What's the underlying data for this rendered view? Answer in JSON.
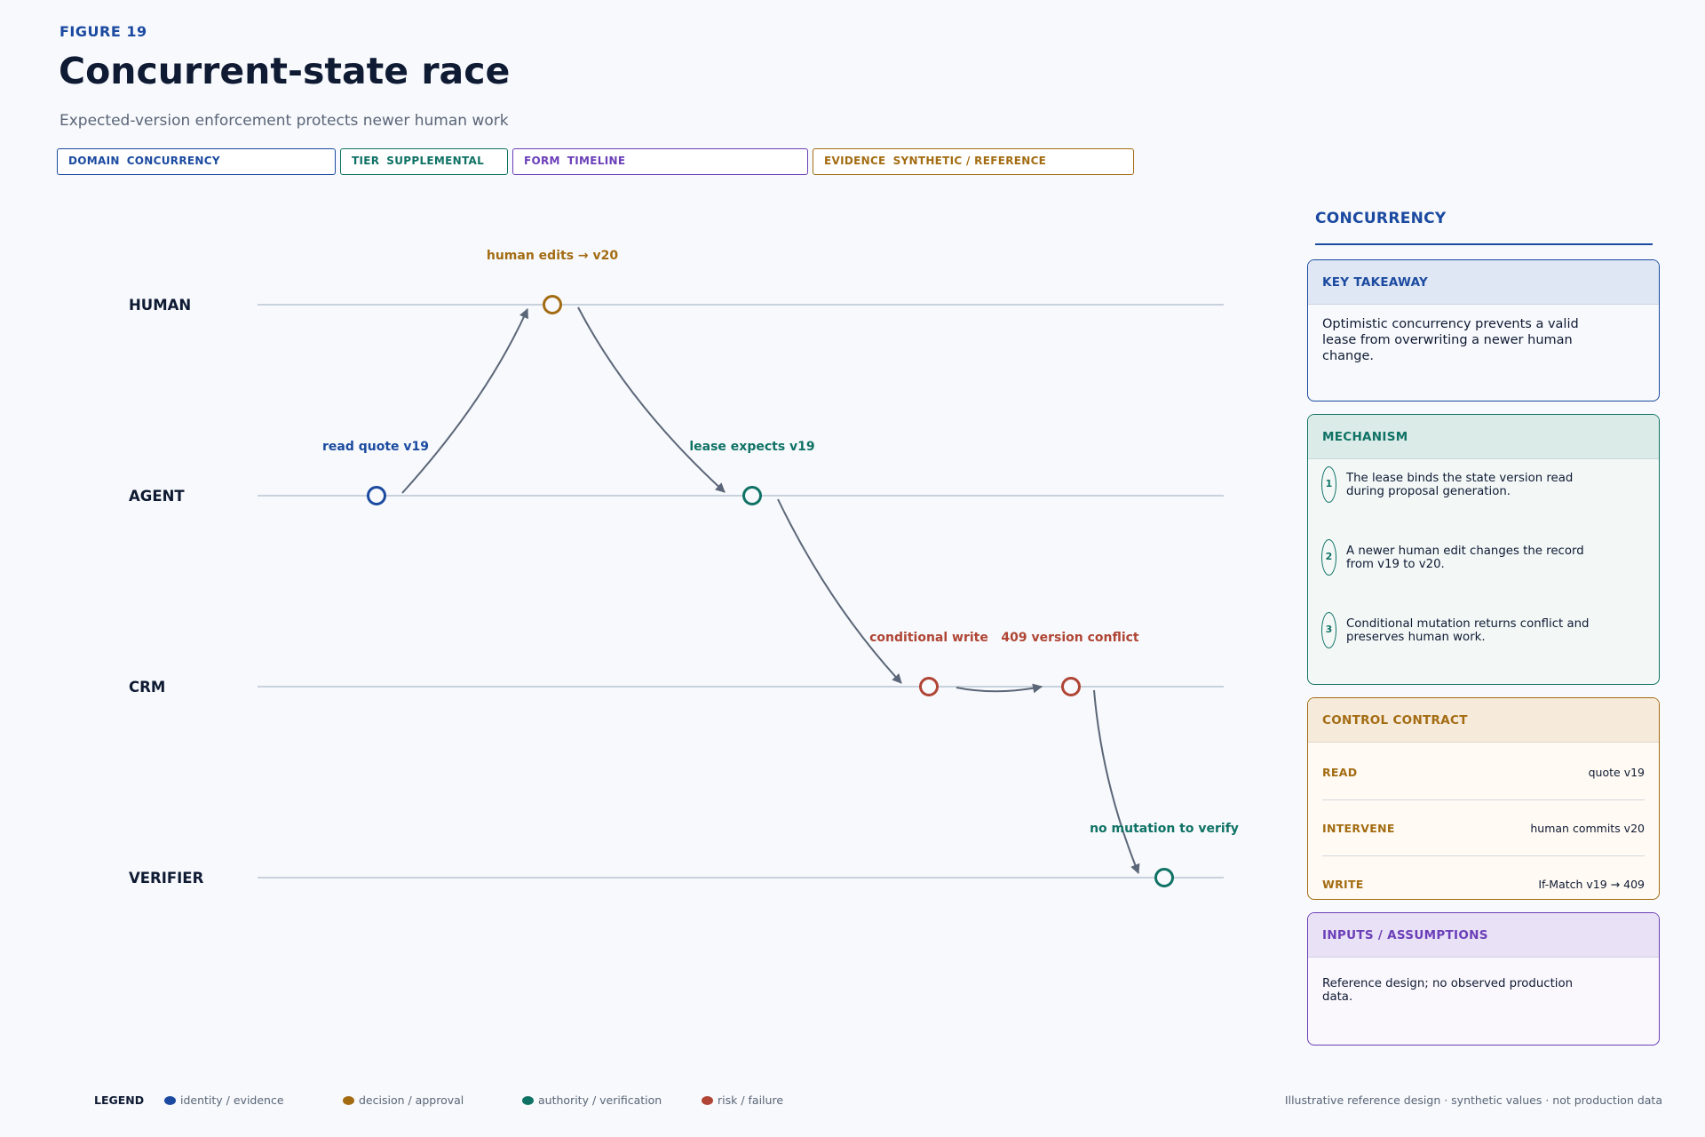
{
  "header": {
    "figure_label": "FIGURE 19",
    "title": "Concurrent-state race",
    "subtitle": "Expected-version enforcement protects newer human work"
  },
  "tags": [
    {
      "key": "DOMAIN",
      "value": "CONCURRENCY",
      "color": "#1b4aa0"
    },
    {
      "key": "TIER",
      "value": "SUPPLEMENTAL",
      "color": "#0f7265"
    },
    {
      "key": "FORM",
      "value": "TIMELINE",
      "color": "#6b3fb8"
    },
    {
      "key": "EVIDENCE",
      "value": "SYNTHETIC / REFERENCE",
      "color": "#a36c12"
    }
  ],
  "diagram": {
    "lanes": [
      "HUMAN",
      "AGENT",
      "CRM",
      "VERIFIER"
    ],
    "events": [
      {
        "id": "read",
        "label": "read quote v19",
        "lane": "AGENT",
        "kind": "identity / evidence"
      },
      {
        "id": "human",
        "label": "human edits → v20",
        "lane": "HUMAN",
        "kind": "decision / approval"
      },
      {
        "id": "lease",
        "label": "lease expects v19",
        "lane": "AGENT",
        "kind": "authority / verification"
      },
      {
        "id": "write",
        "label": "conditional write",
        "lane": "CRM",
        "kind": "risk / failure"
      },
      {
        "id": "conflict",
        "label": "409 version conflict",
        "lane": "CRM",
        "kind": "risk / failure"
      },
      {
        "id": "verify",
        "label": "no mutation to verify",
        "lane": "VERIFIER",
        "kind": "authority / verification"
      }
    ],
    "flows": [
      [
        "read",
        "human"
      ],
      [
        "human",
        "lease"
      ],
      [
        "lease",
        "write"
      ],
      [
        "write",
        "conflict"
      ],
      [
        "conflict",
        "verify"
      ]
    ]
  },
  "panel": {
    "heading": "CONCURRENCY",
    "takeaway": {
      "title": "KEY TAKEAWAY",
      "text": "Optimistic concurrency prevents a valid lease from overwriting a newer human change."
    },
    "mechanism": {
      "title": "MECHANISM",
      "steps": [
        {
          "num": "1",
          "text": "The lease binds the state version read during proposal generation."
        },
        {
          "num": "2",
          "text": "A newer human edit changes the record from v19 to v20."
        },
        {
          "num": "3",
          "text": "Conditional mutation returns conflict and preserves human work."
        }
      ]
    },
    "contract": {
      "title": "CONTROL CONTRACT",
      "rows": [
        {
          "key": "READ",
          "value": "quote v19"
        },
        {
          "key": "INTERVENE",
          "value": "human commits v20"
        },
        {
          "key": "WRITE",
          "value": "If-Match v19 → 409"
        }
      ]
    },
    "inputs": {
      "title": "INPUTS / ASSUMPTIONS",
      "text": "Reference design; no observed production data."
    }
  },
  "legend": {
    "title": "LEGEND",
    "items": [
      {
        "label": "identity / evidence",
        "color": "#1b4aa0"
      },
      {
        "label": "decision / approval",
        "color": "#a36c12"
      },
      {
        "label": "authority / verification",
        "color": "#0f7265"
      },
      {
        "label": "risk / failure",
        "color": "#b04535"
      }
    ]
  },
  "footnote": "Illustrative reference design · synthetic values · not production data"
}
